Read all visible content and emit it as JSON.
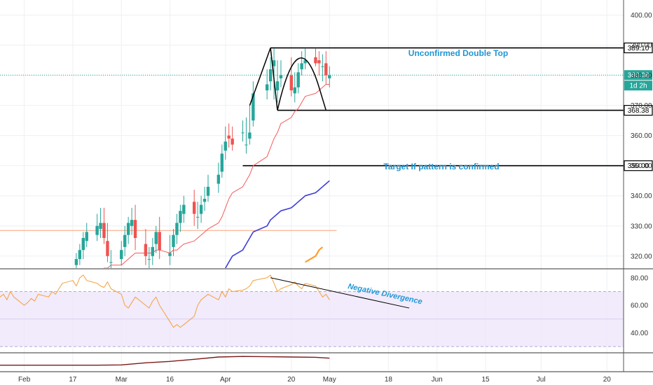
{
  "chart_data": {
    "type": "candlestick",
    "x_axis": {
      "tick_labels": [
        "Feb",
        "17",
        "Mar",
        "16",
        "Apr",
        "20",
        "May",
        "18",
        "Jun",
        "15",
        "Jul",
        "20"
      ],
      "tick_dates": [
        "2020-02-03",
        "2020-02-17",
        "2020-03-02",
        "2020-03-16",
        "2020-04-01",
        "2020-04-20",
        "2020-05-01",
        "2020-05-18",
        "2020-06-01",
        "2020-06-15",
        "2020-07-01",
        "2020-07-20"
      ]
    },
    "price_panel": {
      "y_ticks": [
        "320.00",
        "330.00",
        "340.00",
        "350.00",
        "360.00",
        "370.00",
        "380.00",
        "390.00",
        "400.00"
      ],
      "ylim": [
        316,
        405
      ],
      "grid": true,
      "candles": {
        "dates": [
          "2020-02-18",
          "2020-02-19",
          "2020-02-20",
          "2020-02-21",
          "2020-02-24",
          "2020-02-25",
          "2020-02-26",
          "2020-02-27",
          "2020-02-28",
          "2020-03-02",
          "2020-03-03",
          "2020-03-04",
          "2020-03-05",
          "2020-03-06",
          "2020-03-09",
          "2020-03-10",
          "2020-03-11",
          "2020-03-12",
          "2020-03-13",
          "2020-03-16",
          "2020-03-17",
          "2020-03-18",
          "2020-03-19",
          "2020-03-20",
          "2020-03-23",
          "2020-03-24",
          "2020-03-25",
          "2020-03-26",
          "2020-03-27",
          "2020-03-30",
          "2020-03-31",
          "2020-04-01",
          "2020-04-02",
          "2020-04-03",
          "2020-04-06",
          "2020-04-07",
          "2020-04-08",
          "2020-04-09",
          "2020-04-13",
          "2020-04-14",
          "2020-04-15",
          "2020-04-16",
          "2020-04-17",
          "2020-04-20",
          "2020-04-21",
          "2020-04-22",
          "2020-04-23",
          "2020-04-24",
          "2020-04-27",
          "2020-04-28",
          "2020-04-29",
          "2020-04-30",
          "2020-05-01"
        ],
        "open": [
          317,
          319,
          322,
          325,
          327,
          329,
          331,
          325,
          318,
          319,
          323,
          327,
          330,
          332,
          324,
          319,
          320,
          324,
          328,
          320,
          323,
          327,
          331,
          334,
          338,
          333,
          334,
          338,
          340,
          344,
          348,
          355,
          360,
          359,
          361,
          357,
          359,
          365,
          375,
          378,
          383,
          375,
          379,
          380,
          374,
          376,
          382,
          384,
          386,
          385,
          383,
          384,
          379
        ],
        "high": [
          321,
          324,
          328,
          331,
          334,
          336,
          336,
          331,
          322,
          325,
          330,
          333,
          336,
          337,
          329,
          323,
          326,
          330,
          333,
          327,
          329,
          334,
          337,
          340,
          342,
          338,
          340,
          343,
          347,
          351,
          357,
          363,
          364,
          363,
          365,
          366,
          370,
          378,
          382,
          386,
          389,
          385,
          385,
          386,
          381,
          384,
          388,
          389,
          389,
          388,
          387,
          388,
          383
        ],
        "low": [
          315,
          317,
          319,
          323,
          325,
          326,
          324,
          318,
          315,
          317,
          320,
          324,
          327,
          322,
          317,
          316,
          317,
          321,
          319,
          317,
          320,
          324,
          328,
          331,
          330,
          329,
          331,
          335,
          338,
          341,
          346,
          352,
          356,
          355,
          358,
          354,
          357,
          363,
          372,
          375,
          372,
          371,
          376,
          373,
          371,
          374,
          380,
          382,
          383,
          380,
          378,
          377,
          376
        ],
        "close": [
          319,
          322,
          326,
          328,
          330,
          331,
          326,
          320,
          318,
          322,
          327,
          331,
          332,
          326,
          320,
          319,
          323,
          328,
          322,
          321,
          327,
          331,
          335,
          337,
          334,
          333,
          337,
          339,
          343,
          347,
          354,
          358,
          359,
          357,
          361,
          357,
          361,
          374,
          377,
          382,
          385,
          378,
          380,
          375,
          376,
          381,
          384,
          385,
          384,
          384,
          383,
          380,
          380
        ]
      },
      "ema_short": {
        "color": "#f35b5b",
        "values": [
          311,
          311,
          312,
          313,
          314,
          315,
          316,
          316,
          317,
          317,
          318,
          319,
          320,
          321,
          321,
          321,
          321,
          322,
          322,
          321,
          322,
          322,
          323,
          324,
          325,
          326,
          327,
          328,
          329,
          331,
          333,
          336,
          339,
          341,
          343,
          345,
          347,
          350,
          353,
          356,
          359,
          361,
          364,
          366,
          368,
          369,
          371,
          373,
          374,
          375,
          376,
          377,
          377
        ]
      },
      "ma_mid": {
        "color": "#3c3ed6",
        "start_date": "2020-04-01",
        "values": [
          316,
          318,
          320,
          322,
          324,
          326,
          328,
          330,
          332,
          333,
          334,
          335,
          336,
          337,
          338,
          339,
          340,
          341,
          342,
          343,
          344,
          345,
          346,
          347
        ]
      },
      "ma_long": {
        "color": "#ff9e2c",
        "start_date": "2020-04-24",
        "values": [
          318,
          320,
          322,
          323
        ]
      },
      "horizontal_levels": [
        {
          "value": 389.1,
          "label": "389.10",
          "start_date": "2020-04-14",
          "color": "#000000"
        },
        {
          "value": 368.38,
          "label": "368.38",
          "start_date": "2020-04-16",
          "color": "#000000"
        },
        {
          "value": 350.0,
          "label": "350.00",
          "start_date": "2020-04-06",
          "color": "#000000"
        },
        {
          "value": 328.5,
          "label": "",
          "start_date": "2020-01-27",
          "end_date": "2020-04-27",
          "color": "#f7a27c"
        }
      ],
      "last_price": {
        "value": 380.08,
        "label": "380.08",
        "countdown": "1d 2h",
        "color": "#26a69a"
      },
      "double_top_path": [
        [
          "2020-04-08",
          370
        ],
        [
          "2020-04-14",
          389.1
        ],
        [
          "2020-04-16",
          368.38
        ],
        [
          "2020-04-22",
          389.5
        ],
        [
          "2020-04-28",
          376
        ],
        [
          "2020-04-30",
          368.38
        ]
      ],
      "annotations": {
        "double_top": "Unconfirmed Double Top",
        "target": "Target If pattern is confirmed"
      },
      "hidden_tick_label": "370.00"
    },
    "rsi_panel": {
      "y_ticks": [
        "40.00",
        "60.00",
        "80.00"
      ],
      "ylim": [
        26,
        86
      ],
      "band": [
        30,
        70
      ],
      "dates": [
        "2020-01-27",
        "2020-01-28",
        "2020-01-29",
        "2020-01-30",
        "2020-01-31",
        "2020-02-03",
        "2020-02-04",
        "2020-02-05",
        "2020-02-06",
        "2020-02-07",
        "2020-02-10",
        "2020-02-11",
        "2020-02-12",
        "2020-02-13",
        "2020-02-14",
        "2020-02-17",
        "2020-02-18",
        "2020-02-19",
        "2020-02-20",
        "2020-02-21",
        "2020-02-24",
        "2020-02-25",
        "2020-02-26",
        "2020-02-27",
        "2020-02-28",
        "2020-03-02",
        "2020-03-03",
        "2020-03-04",
        "2020-03-05",
        "2020-03-06",
        "2020-03-09",
        "2020-03-10",
        "2020-03-11",
        "2020-03-12",
        "2020-03-13",
        "2020-03-16",
        "2020-03-17",
        "2020-03-18",
        "2020-03-19",
        "2020-03-20",
        "2020-03-23",
        "2020-03-24",
        "2020-03-25",
        "2020-03-26",
        "2020-03-27",
        "2020-03-30",
        "2020-03-31",
        "2020-04-01",
        "2020-04-02",
        "2020-04-03",
        "2020-04-06",
        "2020-04-07",
        "2020-04-08",
        "2020-04-09",
        "2020-04-13",
        "2020-04-14",
        "2020-04-15",
        "2020-04-16",
        "2020-04-17",
        "2020-04-20",
        "2020-04-21",
        "2020-04-22",
        "2020-04-23",
        "2020-04-24",
        "2020-04-27",
        "2020-04-28",
        "2020-04-29",
        "2020-04-30",
        "2020-05-01"
      ],
      "values": [
        66,
        68,
        64,
        70,
        66,
        60,
        62,
        65,
        63,
        68,
        66,
        70,
        68,
        72,
        76,
        78,
        74,
        80,
        82,
        78,
        76,
        74,
        73,
        77,
        72,
        68,
        60,
        58,
        62,
        66,
        60,
        58,
        63,
        66,
        60,
        48,
        44,
        46,
        44,
        46,
        52,
        60,
        64,
        66,
        68,
        64,
        70,
        66,
        72,
        70,
        71,
        72,
        74,
        78,
        80,
        82,
        76,
        70,
        72,
        75,
        77,
        74,
        72,
        76,
        74,
        70,
        66,
        68,
        64
      ],
      "divergence_line": [
        [
          "2020-04-14",
          80
        ],
        [
          "2020-05-24",
          58
        ]
      ],
      "annotation": "Negative Divergence"
    },
    "volume_panel": {
      "line_color": "#7b1a1a",
      "dates": [
        "2020-01-27",
        "2020-02-10",
        "2020-02-24",
        "2020-03-02",
        "2020-03-09",
        "2020-03-16",
        "2020-03-23",
        "2020-03-30",
        "2020-04-06",
        "2020-04-13",
        "2020-04-20",
        "2020-04-27",
        "2020-05-01"
      ],
      "values": [
        20,
        20,
        20,
        21,
        28,
        33,
        40,
        48,
        50,
        49,
        48,
        47,
        44
      ]
    }
  }
}
